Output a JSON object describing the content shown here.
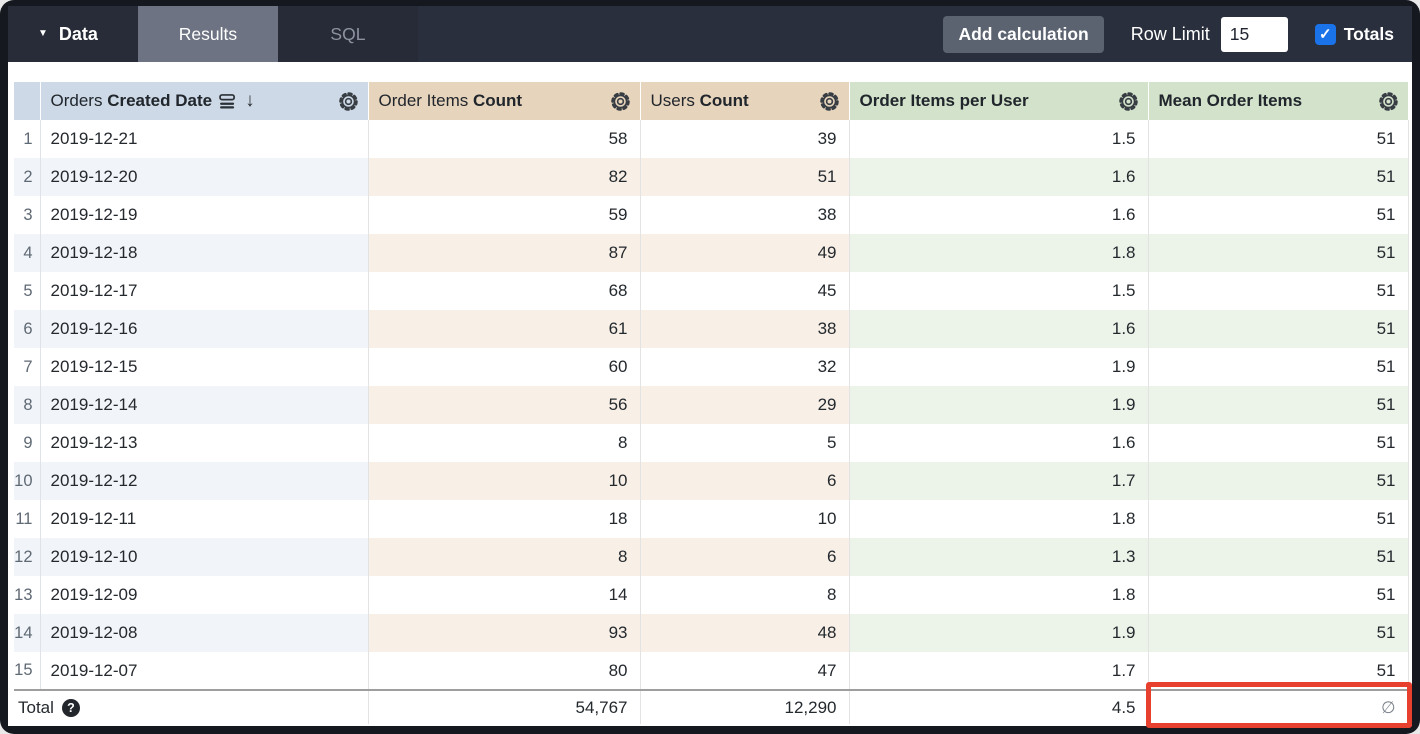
{
  "topbar": {
    "data_menu_label": "Data",
    "tabs": [
      {
        "label": "Results",
        "active": true
      },
      {
        "label": "SQL",
        "active": false
      }
    ],
    "add_calculation_label": "Add calculation",
    "row_limit_label": "Row Limit",
    "row_limit_value": "15",
    "totals_label": "Totals",
    "totals_checked": true
  },
  "icons": {
    "caret_down": "▼",
    "sort_arrow_down": "↓",
    "checkmark": "✓",
    "help_question": "?",
    "gear": "gear-outline",
    "sorted_field": "sorted-field-stack",
    "empty_value": "∅"
  },
  "colors": {
    "topbar_bg": "#2a2f3d",
    "active_tab_bg": "#6d7382",
    "button_bg": "#5c6370",
    "checkbox_blue": "#1a73e8",
    "dimension_header_bg": "#cdd9e6",
    "measure_header_tan_bg": "#e7d4bc",
    "measure_header_green_bg": "#d3e3cb",
    "dimension_row_tint": "#f1f4f8",
    "measure_row_tan_tint": "#f8f0e7",
    "measure_row_green_tint": "#ecf4e9",
    "annotation_red": "#e8402e"
  },
  "table": {
    "columns": [
      {
        "prefix": "Orders ",
        "name": "Created Date"
      },
      {
        "prefix": "Order Items ",
        "name": "Count"
      },
      {
        "prefix": "Users ",
        "name": "Count"
      },
      {
        "prefix": "",
        "name": "Order Items per User"
      },
      {
        "prefix": "",
        "name": "Mean Order Items"
      }
    ],
    "rows": [
      {
        "n": 1,
        "date": "2019-12-21",
        "order_items_count": "58",
        "users_count": "39",
        "order_items_per_user": "1.5",
        "mean_order_items": "51"
      },
      {
        "n": 2,
        "date": "2019-12-20",
        "order_items_count": "82",
        "users_count": "51",
        "order_items_per_user": "1.6",
        "mean_order_items": "51"
      },
      {
        "n": 3,
        "date": "2019-12-19",
        "order_items_count": "59",
        "users_count": "38",
        "order_items_per_user": "1.6",
        "mean_order_items": "51"
      },
      {
        "n": 4,
        "date": "2019-12-18",
        "order_items_count": "87",
        "users_count": "49",
        "order_items_per_user": "1.8",
        "mean_order_items": "51"
      },
      {
        "n": 5,
        "date": "2019-12-17",
        "order_items_count": "68",
        "users_count": "45",
        "order_items_per_user": "1.5",
        "mean_order_items": "51"
      },
      {
        "n": 6,
        "date": "2019-12-16",
        "order_items_count": "61",
        "users_count": "38",
        "order_items_per_user": "1.6",
        "mean_order_items": "51"
      },
      {
        "n": 7,
        "date": "2019-12-15",
        "order_items_count": "60",
        "users_count": "32",
        "order_items_per_user": "1.9",
        "mean_order_items": "51"
      },
      {
        "n": 8,
        "date": "2019-12-14",
        "order_items_count": "56",
        "users_count": "29",
        "order_items_per_user": "1.9",
        "mean_order_items": "51"
      },
      {
        "n": 9,
        "date": "2019-12-13",
        "order_items_count": "8",
        "users_count": "5",
        "order_items_per_user": "1.6",
        "mean_order_items": "51"
      },
      {
        "n": 10,
        "date": "2019-12-12",
        "order_items_count": "10",
        "users_count": "6",
        "order_items_per_user": "1.7",
        "mean_order_items": "51"
      },
      {
        "n": 11,
        "date": "2019-12-11",
        "order_items_count": "18",
        "users_count": "10",
        "order_items_per_user": "1.8",
        "mean_order_items": "51"
      },
      {
        "n": 12,
        "date": "2019-12-10",
        "order_items_count": "8",
        "users_count": "6",
        "order_items_per_user": "1.3",
        "mean_order_items": "51"
      },
      {
        "n": 13,
        "date": "2019-12-09",
        "order_items_count": "14",
        "users_count": "8",
        "order_items_per_user": "1.8",
        "mean_order_items": "51"
      },
      {
        "n": 14,
        "date": "2019-12-08",
        "order_items_count": "93",
        "users_count": "48",
        "order_items_per_user": "1.9",
        "mean_order_items": "51"
      },
      {
        "n": 15,
        "date": "2019-12-07",
        "order_items_count": "80",
        "users_count": "47",
        "order_items_per_user": "1.7",
        "mean_order_items": "51"
      }
    ],
    "total": {
      "label": "Total",
      "order_items_count": "54,767",
      "users_count": "12,290",
      "order_items_per_user": "4.5",
      "mean_order_items": "∅"
    }
  }
}
